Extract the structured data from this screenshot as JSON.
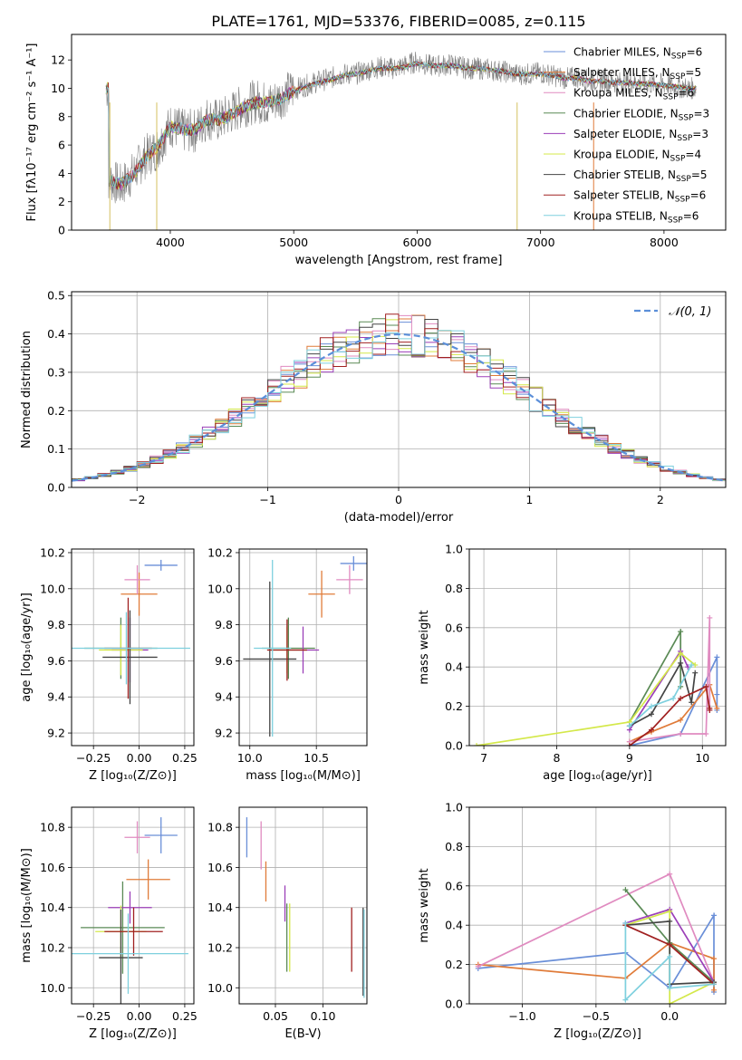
{
  "figure_title": "PLATE=1761, MJD=53376, FIBERID=0085, z=0.115",
  "series_styles": [
    {
      "name": "Chabrier MILES, N_SSP=6",
      "color": "#6a8fd8"
    },
    {
      "name": "Salpeter MILES, N_SSP=5",
      "color": "#e07b39"
    },
    {
      "name": "Kroupa MILES, N_SSP=6",
      "color": "#e08bc0"
    },
    {
      "name": "Chabrier ELODIE, N_SSP=3",
      "color": "#5a8a55"
    },
    {
      "name": "Salpeter ELODIE, N_SSP=3",
      "color": "#9b3fb8"
    },
    {
      "name": "Kroupa ELODIE, N_SSP=4",
      "color": "#d4e84a"
    },
    {
      "name": "Chabrier STELIB, N_SSP=5",
      "color": "#444444"
    },
    {
      "name": "Salpeter STELIB, N_SSP=6",
      "color": "#a02020"
    },
    {
      "name": "Kroupa STELIB, N_SSP=6",
      "color": "#7ed0de"
    }
  ],
  "chart_data": [
    {
      "id": "spectrum",
      "type": "line",
      "xlabel": "wavelength [Angstrom, rest frame]",
      "ylabel": "Flux [fλ10⁻¹⁷ erg cm⁻² s⁻¹ A⁻¹]",
      "xlim": [
        3200,
        8500
      ],
      "ylim": [
        0,
        13.8
      ],
      "xticks": [
        4000,
        5000,
        6000,
        7000,
        8000
      ],
      "yticks": [
        0,
        2,
        4,
        6,
        8,
        10,
        12
      ],
      "legend_position": "right",
      "legend": [
        {
          "prefix": "Chabrier MILES, N",
          "sub": "SSP",
          "suffix": "=6"
        },
        {
          "prefix": "Salpeter MILES, N",
          "sub": "SSP",
          "suffix": "=5"
        },
        {
          "prefix": "Kroupa MILES, N",
          "sub": "SSP",
          "suffix": "=6"
        },
        {
          "prefix": "Chabrier ELODIE, N",
          "sub": "SSP",
          "suffix": "=3"
        },
        {
          "prefix": "Salpeter ELODIE, N",
          "sub": "SSP",
          "suffix": "=3"
        },
        {
          "prefix": "Kroupa ELODIE, N",
          "sub": "SSP",
          "suffix": "=4"
        },
        {
          "prefix": "Chabrier STELIB, N",
          "sub": "SSP",
          "suffix": "=5"
        },
        {
          "prefix": "Salpeter STELIB, N",
          "sub": "SSP",
          "suffix": "=6"
        },
        {
          "prefix": "Kroupa STELIB, N",
          "sub": "SSP",
          "suffix": "=6"
        }
      ],
      "data_color": "#808080",
      "data_x": [
        3500,
        3600,
        3700,
        3800,
        3900,
        4000,
        4100,
        4200,
        4300,
        4400,
        4500,
        4600,
        4700,
        4800,
        4900,
        5000,
        5100,
        5200,
        5300,
        5400,
        5500,
        5600,
        5700,
        5800,
        5900,
        6000,
        6100,
        6200,
        6300,
        6400,
        6500,
        6600,
        6700,
        6800,
        6900,
        7000,
        7100,
        7200,
        7300,
        7400,
        7500,
        7600,
        7700,
        7800,
        7900,
        8000,
        8100,
        8200
      ],
      "data_y": [
        3.6,
        3.1,
        4.0,
        5.2,
        5.8,
        7.4,
        7.0,
        7.0,
        7.9,
        7.7,
        8.3,
        8.8,
        9.1,
        8.9,
        9.4,
        9.9,
        10.2,
        10.5,
        10.7,
        11.0,
        11.0,
        11.3,
        11.5,
        11.4,
        11.6,
        11.9,
        11.6,
        11.6,
        11.7,
        11.4,
        11.4,
        11.3,
        11.2,
        11.0,
        11.0,
        11.1,
        10.9,
        10.7,
        10.8,
        10.5,
        10.6,
        10.4,
        10.4,
        10.4,
        10.3,
        10.3,
        10.1,
        10.0
      ],
      "model_y": [
        3.5,
        3.2,
        3.9,
        5.1,
        5.9,
        7.3,
        7.1,
        7.1,
        7.8,
        7.8,
        8.2,
        8.7,
        9.0,
        9.0,
        9.3,
        9.8,
        10.1,
        10.4,
        10.6,
        10.9,
        11.0,
        11.2,
        11.4,
        11.4,
        11.5,
        11.8,
        11.6,
        11.6,
        11.6,
        11.4,
        11.4,
        11.3,
        11.2,
        11.0,
        11.0,
        11.0,
        10.9,
        10.7,
        10.7,
        10.5,
        10.5,
        10.4,
        10.4,
        10.3,
        10.3,
        10.2,
        10.1,
        10.0
      ]
    },
    {
      "id": "residuals",
      "type": "histogram",
      "xlabel": "(data-model)/error",
      "ylabel": "Normed distribution",
      "xlim": [
        -2.5,
        2.5
      ],
      "ylim": [
        0,
        0.51
      ],
      "xticks": [
        -2,
        -1,
        0,
        1,
        2
      ],
      "xtick_labels": [
        "−2",
        "−1",
        "0",
        "1",
        "2"
      ],
      "yticks": [
        0,
        0.1,
        0.2,
        0.3,
        0.4,
        0.5
      ],
      "ytick_labels": [
        "0.0",
        "0.1",
        "0.2",
        "0.3",
        "0.4",
        "0.5"
      ],
      "grid": true,
      "legend_position": "top-right",
      "gaussian_label": "𝒩(0, 1)",
      "gaussian_color": "#5b8fd9",
      "bin_width": 0.1
    },
    {
      "id": "age_vs_z",
      "type": "scatter-errorbar",
      "xlabel": "Z [log₁₀(Z/Z⊙)]",
      "ylabel": "age  [log₁₀(age/yr)]",
      "xlim": [
        -0.37,
        0.3
      ],
      "ylim": [
        9.13,
        10.22
      ],
      "xticks": [
        -0.25,
        0,
        0.25
      ],
      "xtick_labels": [
        "−0.25",
        "0.00",
        "0.25"
      ],
      "yticks": [
        9.2,
        9.4,
        9.6,
        9.8,
        10.0,
        10.2
      ],
      "ytick_labels": [
        "9.2",
        "9.4",
        "9.6",
        "9.8",
        "10.0",
        "10.2"
      ],
      "points": [
        {
          "x": 0.12,
          "y": 10.13,
          "xerr": 0.09,
          "yerr": 0.03
        },
        {
          "x": 0.0,
          "y": 9.97,
          "xerr": 0.1,
          "yerr": 0.12
        },
        {
          "x": -0.01,
          "y": 10.05,
          "xerr": 0.07,
          "yerr": 0.08
        },
        {
          "x": -0.1,
          "y": 9.67,
          "xerr": 0.2,
          "yerr": 0.17
        },
        {
          "x": -0.05,
          "y": 9.66,
          "xerr": 0.1,
          "yerr": 0.18
        },
        {
          "x": -0.1,
          "y": 9.66,
          "xerr": 0.12,
          "yerr": 0.14
        },
        {
          "x": -0.05,
          "y": 9.62,
          "xerr": 0.15,
          "yerr": 0.26
        },
        {
          "x": -0.06,
          "y": 9.67,
          "xerr": 0.13,
          "yerr": 0.28
        },
        {
          "x": -0.07,
          "y": 9.67,
          "xerr": 0.35,
          "yerr": 0.2
        }
      ]
    },
    {
      "id": "age_vs_mass",
      "type": "scatter-errorbar",
      "xlabel": "mass [log₁₀(M/M⊙)]",
      "ylabel": "",
      "xlim": [
        9.92,
        10.88
      ],
      "ylim": [
        9.13,
        10.22
      ],
      "xticks": [
        10.0,
        10.5
      ],
      "xtick_labels": [
        "10.0",
        "10.5"
      ],
      "yticks": [
        9.2,
        9.4,
        9.6,
        9.8,
        10.0,
        10.2
      ],
      "ytick_labels": [
        "9.2",
        "9.4",
        "9.6",
        "9.8",
        "10.0",
        "10.2"
      ],
      "points": [
        {
          "x": 10.78,
          "y": 10.14,
          "xerr": 0.1,
          "yerr": 0.04
        },
        {
          "x": 10.54,
          "y": 9.97,
          "xerr": 0.1,
          "yerr": 0.13
        },
        {
          "x": 10.75,
          "y": 10.05,
          "xerr": 0.1,
          "yerr": 0.08
        },
        {
          "x": 10.29,
          "y": 9.67,
          "xerr": 0.2,
          "yerr": 0.17
        },
        {
          "x": 10.4,
          "y": 9.66,
          "xerr": 0.12,
          "yerr": 0.13
        },
        {
          "x": 10.28,
          "y": 9.66,
          "xerr": 0.14,
          "yerr": 0.13
        },
        {
          "x": 10.15,
          "y": 9.61,
          "xerr": 0.2,
          "yerr": 0.43
        },
        {
          "x": 10.28,
          "y": 9.66,
          "xerr": 0.15,
          "yerr": 0.17
        },
        {
          "x": 10.17,
          "y": 9.67,
          "xerr": 0.14,
          "yerr": 0.49
        }
      ]
    },
    {
      "id": "weight_vs_age",
      "type": "line",
      "xlabel": "age  [log₁₀(age/yr)]",
      "ylabel": "mass weight",
      "xlim": [
        6.8,
        10.32
      ],
      "ylim": [
        0,
        1.0
      ],
      "xticks": [
        7,
        8,
        9,
        10
      ],
      "xtick_labels": [
        "7",
        "8",
        "9",
        "10"
      ],
      "yticks": [
        0,
        0.2,
        0.4,
        0.6,
        0.8,
        1.0
      ],
      "ytick_labels": [
        "0.0",
        "0.2",
        "0.4",
        "0.6",
        "0.8",
        "1.0"
      ],
      "series": [
        {
          "x": [
            9.0,
            9.7,
            10.2,
            10.2,
            10.2
          ],
          "y": [
            0.0,
            0.06,
            0.45,
            0.26,
            0.18
          ]
        },
        {
          "x": [
            9.0,
            9.3,
            9.7,
            10.1,
            10.2
          ],
          "y": [
            0.02,
            0.07,
            0.13,
            0.31,
            0.19
          ]
        },
        {
          "x": [
            9.0,
            9.7,
            10.05,
            10.1,
            10.1
          ],
          "y": [
            0.02,
            0.06,
            0.06,
            0.65,
            0.18
          ]
        },
        {
          "x": [
            9.0,
            9.7,
            9.7
          ],
          "y": [
            0.12,
            0.58,
            0.3
          ]
        },
        {
          "x": [
            9.0,
            9.7,
            9.8
          ],
          "y": [
            0.08,
            0.48,
            0.4
          ]
        },
        {
          "x": [
            6.9,
            9.0,
            9.7,
            9.9
          ],
          "y": [
            0.0,
            0.12,
            0.47,
            0.41
          ]
        },
        {
          "x": [
            9.0,
            9.3,
            9.7,
            9.85,
            9.9
          ],
          "y": [
            0.1,
            0.16,
            0.42,
            0.22,
            0.37
          ]
        },
        {
          "x": [
            9.0,
            9.3,
            9.7,
            10.05,
            10.1,
            10.1
          ],
          "y": [
            0.0,
            0.08,
            0.24,
            0.3,
            0.18,
            0.19
          ]
        },
        {
          "x": [
            9.0,
            9.3,
            9.6,
            9.85
          ],
          "y": [
            0.1,
            0.2,
            0.24,
            0.41
          ]
        }
      ]
    },
    {
      "id": "mass_vs_z",
      "type": "scatter-errorbar",
      "xlabel": "Z [log₁₀(Z/Z⊙)]",
      "ylabel": "mass [log₁₀(M/M⊙)]",
      "xlim": [
        -0.37,
        0.3
      ],
      "ylim": [
        9.92,
        10.9
      ],
      "xticks": [
        -0.25,
        0,
        0.25
      ],
      "xtick_labels": [
        "−0.25",
        "0.00",
        "0.25"
      ],
      "yticks": [
        10.0,
        10.2,
        10.4,
        10.6,
        10.8
      ],
      "ytick_labels": [
        "10.0",
        "10.2",
        "10.4",
        "10.6",
        "10.8"
      ],
      "points": [
        {
          "x": 0.12,
          "y": 10.76,
          "xerr": 0.09,
          "yerr": 0.09
        },
        {
          "x": 0.05,
          "y": 10.54,
          "xerr": 0.12,
          "yerr": 0.1
        },
        {
          "x": -0.01,
          "y": 10.75,
          "xerr": 0.07,
          "yerr": 0.08
        },
        {
          "x": -0.09,
          "y": 10.3,
          "xerr": 0.23,
          "yerr": 0.23
        },
        {
          "x": -0.05,
          "y": 10.4,
          "xerr": 0.12,
          "yerr": 0.08
        },
        {
          "x": -0.1,
          "y": 10.28,
          "xerr": 0.14,
          "yerr": 0.13
        },
        {
          "x": -0.1,
          "y": 10.15,
          "xerr": 0.12,
          "yerr": 0.24
        },
        {
          "x": -0.03,
          "y": 10.28,
          "xerr": 0.16,
          "yerr": 0.12
        },
        {
          "x": -0.06,
          "y": 10.17,
          "xerr": 0.33,
          "yerr": 0.2
        }
      ]
    },
    {
      "id": "mass_vs_ebv",
      "type": "scatter-errorbar",
      "xlabel": "E(B-V)",
      "ylabel": "",
      "xlim": [
        0.012,
        0.146
      ],
      "ylim": [
        9.92,
        10.9
      ],
      "xticks": [
        0.05,
        0.1
      ],
      "xtick_labels": [
        "0.05",
        "0.10"
      ],
      "yticks": [
        10.0,
        10.2,
        10.4,
        10.6,
        10.8
      ],
      "ytick_labels": [
        "10.0",
        "10.2",
        "10.4",
        "10.6",
        "10.8"
      ],
      "points": [
        {
          "x": 0.02,
          "y": 10.75,
          "xerr": 0,
          "yerr": 0.1
        },
        {
          "x": 0.04,
          "y": 10.53,
          "xerr": 0,
          "yerr": 0.1
        },
        {
          "x": 0.035,
          "y": 10.71,
          "xerr": 0,
          "yerr": 0.12
        },
        {
          "x": 0.062,
          "y": 10.25,
          "xerr": 0,
          "yerr": 0.17
        },
        {
          "x": 0.06,
          "y": 10.42,
          "xerr": 0,
          "yerr": 0.09
        },
        {
          "x": 0.065,
          "y": 10.25,
          "xerr": 0,
          "yerr": 0.17
        },
        {
          "x": 0.142,
          "y": 10.18,
          "xerr": 0,
          "yerr": 0.22
        },
        {
          "x": 0.13,
          "y": 10.24,
          "xerr": 0,
          "yerr": 0.16
        },
        {
          "x": 0.143,
          "y": 10.17,
          "xerr": 0,
          "yerr": 0.22
        }
      ]
    },
    {
      "id": "weight_vs_z",
      "type": "line",
      "xlabel": "Z [log₁₀(Z/Z⊙)]",
      "ylabel": "mass weight",
      "xlim": [
        -1.36,
        0.38
      ],
      "ylim": [
        0,
        1.0
      ],
      "xticks": [
        -1.0,
        -0.5,
        0.0
      ],
      "xtick_labels": [
        "−1.0",
        "−0.5",
        "0.0"
      ],
      "yticks": [
        0,
        0.2,
        0.4,
        0.6,
        0.8,
        1.0
      ],
      "ytick_labels": [
        "0.0",
        "0.2",
        "0.4",
        "0.6",
        "0.8",
        "1.0"
      ],
      "series": [
        {
          "x": [
            -1.3,
            -0.3,
            0.0,
            0.3,
            0.3
          ],
          "y": [
            0.18,
            0.26,
            0.08,
            0.45,
            0.06
          ]
        },
        {
          "x": [
            -1.3,
            -0.3,
            0.0,
            0.3,
            0.3
          ],
          "y": [
            0.2,
            0.13,
            0.31,
            0.23,
            0.07
          ]
        },
        {
          "x": [
            -1.3,
            0.0,
            0.3
          ],
          "y": [
            0.19,
            0.66,
            0.11
          ]
        },
        {
          "x": [
            -0.3,
            0.0,
            0.3
          ],
          "y": [
            0.58,
            0.31,
            0.11
          ]
        },
        {
          "x": [
            -0.3,
            0.0,
            0.3
          ],
          "y": [
            0.41,
            0.48,
            0.11
          ]
        },
        {
          "x": [
            -0.3,
            0.0,
            0.0,
            0.3
          ],
          "y": [
            0.4,
            0.47,
            0.0,
            0.11
          ]
        },
        {
          "x": [
            -0.3,
            0.0,
            0.0,
            0.3
          ],
          "y": [
            0.4,
            0.42,
            0.1,
            0.11
          ]
        },
        {
          "x": [
            -0.3,
            0.0,
            0.3
          ],
          "y": [
            0.4,
            0.3,
            0.1
          ]
        },
        {
          "x": [
            -0.3,
            -0.3,
            0.0,
            0.0,
            0.3
          ],
          "y": [
            0.41,
            0.02,
            0.24,
            0.08,
            0.1
          ]
        }
      ]
    }
  ]
}
